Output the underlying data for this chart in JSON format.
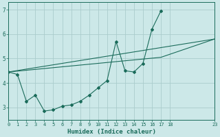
{
  "xlabel": "Humidex (Indice chaleur)",
  "bg_color": "#cce8e8",
  "grid_color": "#aacccc",
  "line_color": "#1a6b5a",
  "xlim": [
    0,
    23
  ],
  "ylim": [
    2.5,
    7.3
  ],
  "xticks": [
    0,
    1,
    2,
    3,
    4,
    5,
    6,
    7,
    8,
    9,
    10,
    11,
    12,
    13,
    14,
    15,
    16,
    17,
    18,
    23
  ],
  "yticks": [
    3,
    4,
    5,
    6,
    7
  ],
  "series1_x": [
    0,
    1,
    2,
    3,
    4,
    5,
    6,
    7,
    8,
    9,
    10,
    11,
    12,
    13,
    14,
    15,
    16,
    17
  ],
  "series1_y": [
    4.45,
    4.35,
    3.25,
    3.5,
    2.85,
    2.9,
    3.05,
    3.1,
    3.25,
    3.5,
    3.8,
    4.1,
    5.7,
    4.5,
    4.45,
    4.8,
    6.2,
    6.95
  ],
  "series2_x": [
    0,
    23
  ],
  "series2_y": [
    4.45,
    5.8
  ],
  "series3_x": [
    0,
    17,
    23
  ],
  "series3_y": [
    4.45,
    5.05,
    5.8
  ]
}
